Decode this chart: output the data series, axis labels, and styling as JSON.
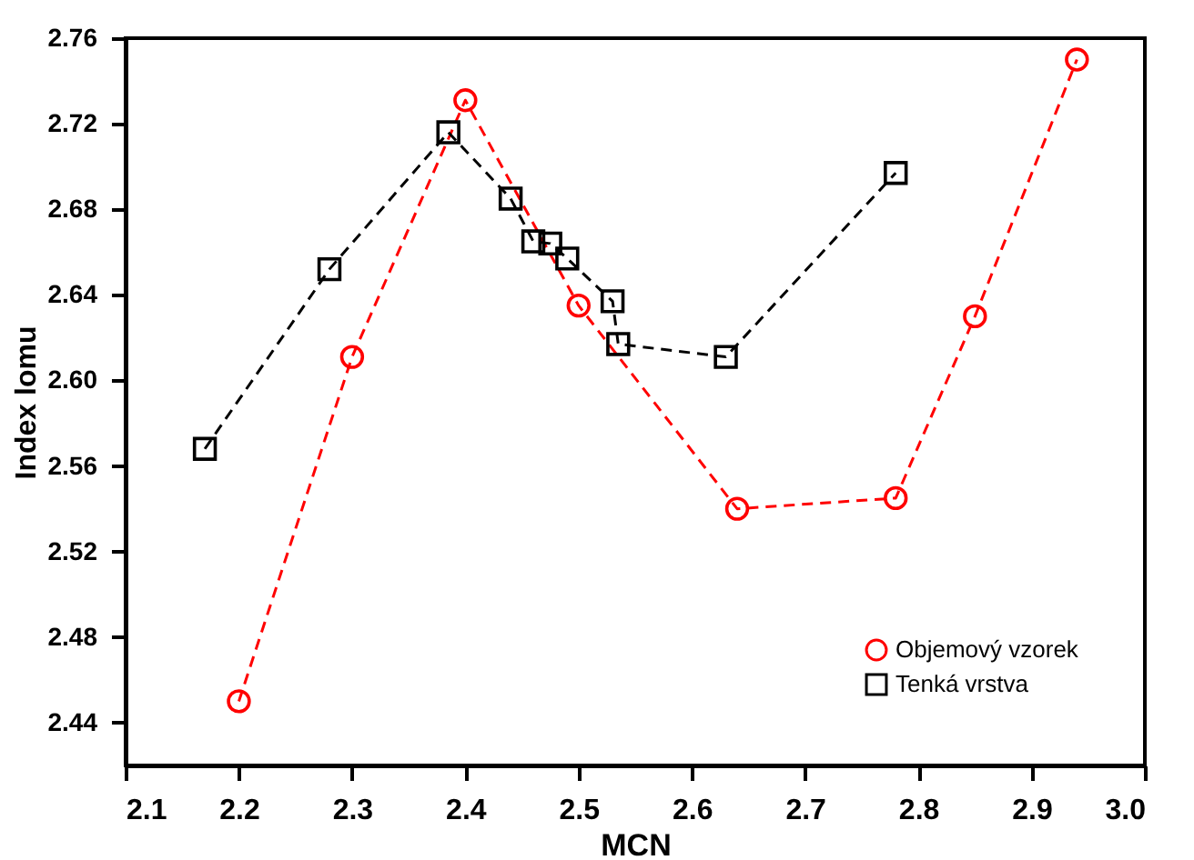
{
  "chart_data": {
    "type": "line",
    "xlabel": "MCN",
    "ylabel": "Index lomu",
    "xlim": [
      2.1,
      3.0
    ],
    "ylim": [
      2.42,
      2.76
    ],
    "xticks": [
      2.1,
      2.2,
      2.3,
      2.4,
      2.5,
      2.6,
      2.7,
      2.8,
      2.9,
      {
        "value": 3,
        "label": "3.0"
      }
    ],
    "yticks": [
      2.44,
      2.48,
      2.52,
      2.56,
      {
        "value": 2.6,
        "label": "2.60"
      },
      2.64,
      2.68,
      2.72,
      2.76
    ],
    "grid": false,
    "legend": "bottom right",
    "line_style": "dashed",
    "series": [
      {
        "name": "Objemový vzorek",
        "color": "#ff0000",
        "marker": "circle",
        "x": [
          2.2,
          2.3,
          2.4,
          2.5,
          2.64,
          2.78,
          2.85,
          2.94
        ],
        "values": [
          2.45,
          2.611,
          2.731,
          2.635,
          2.54,
          2.545,
          2.63,
          2.75
        ]
      },
      {
        "name": "Tenká vrstva",
        "color": "#000000",
        "marker": "square",
        "x": [
          2.17,
          2.28,
          2.385,
          2.44,
          2.46,
          2.475,
          2.49,
          2.53,
          2.535,
          2.63,
          2.78
        ],
        "values": [
          2.568,
          2.652,
          2.716,
          2.685,
          2.665,
          2.664,
          2.657,
          2.637,
          2.617,
          2.611,
          2.697
        ]
      }
    ]
  }
}
